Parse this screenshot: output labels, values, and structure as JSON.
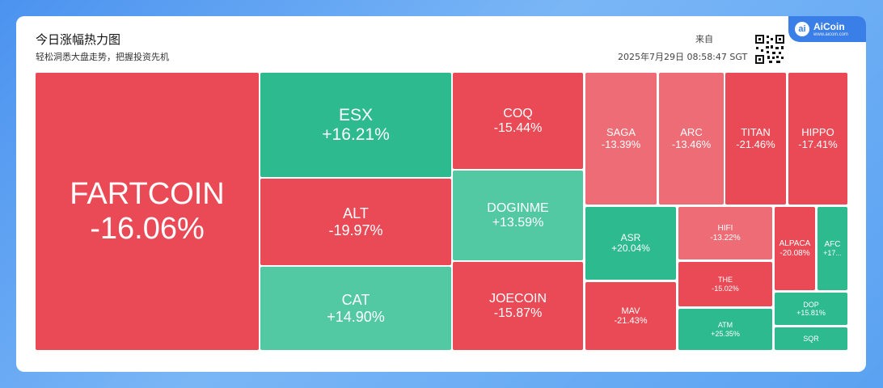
{
  "header": {
    "title": "今日涨幅热力图",
    "subtitle": "轻松洞悉大盘走势，把握投资先机",
    "source_label": "来自",
    "timestamp": "2025年7月29日 08:58:47 SGT",
    "brand": "AiCoin",
    "brand_url": "www.aicoin.com"
  },
  "colors": {
    "down": "#ea4a55",
    "down_light": "#ee6c75",
    "up": "#2cba8e",
    "up_light": "#52c9a3"
  },
  "tiles": [
    {
      "symbol": "FARTCOIN",
      "change": "-16.06%"
    },
    {
      "symbol": "ESX",
      "change": "+16.21%"
    },
    {
      "symbol": "ALT",
      "change": "-19.97%"
    },
    {
      "symbol": "CAT",
      "change": "+14.90%"
    },
    {
      "symbol": "COQ",
      "change": "-15.44%"
    },
    {
      "symbol": "DOGINME",
      "change": "+13.59%"
    },
    {
      "symbol": "JOECOIN",
      "change": "-15.87%"
    },
    {
      "symbol": "SAGA",
      "change": "-13.39%"
    },
    {
      "symbol": "ARC",
      "change": "-13.46%"
    },
    {
      "symbol": "TITAN",
      "change": "-21.46%"
    },
    {
      "symbol": "HIPPO",
      "change": "-17.41%"
    },
    {
      "symbol": "ASR",
      "change": "+20.04%"
    },
    {
      "symbol": "HIFI",
      "change": "-13.22%"
    },
    {
      "symbol": "ALPACA",
      "change": "-20.08%"
    },
    {
      "symbol": "AFC",
      "change": "+17..."
    },
    {
      "symbol": "MAV",
      "change": "-21.43%"
    },
    {
      "symbol": "THE",
      "change": "-15.02%"
    },
    {
      "symbol": "ATM",
      "change": "+25.35%"
    },
    {
      "symbol": "DOP",
      "change": "+15.81%"
    },
    {
      "symbol": "SQR",
      "change": ""
    }
  ]
}
